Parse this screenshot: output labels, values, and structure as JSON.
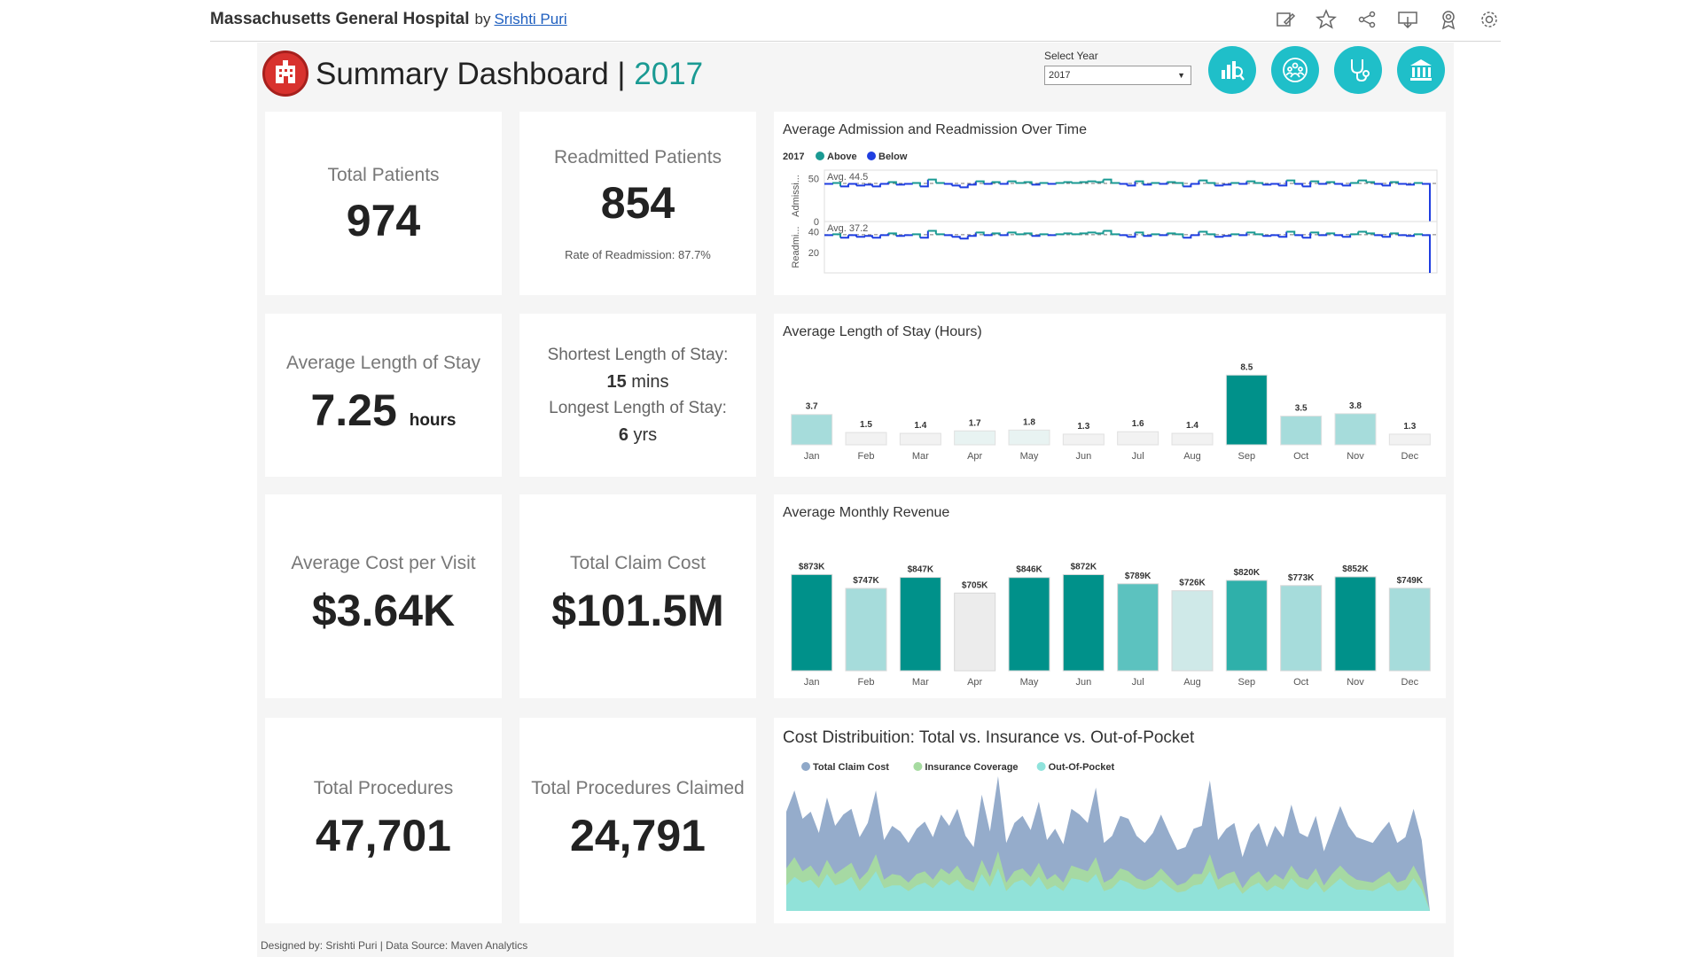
{
  "header": {
    "title": "Massachusetts General Hospital",
    "by": "by",
    "author": "Srishti Puri",
    "icons": [
      "edit-icon",
      "star-icon",
      "share-icon",
      "download-icon",
      "subscribe-icon",
      "settings-icon"
    ]
  },
  "dashboard": {
    "title": "Summary Dashboard | ",
    "year": "2017",
    "select_label": "Select Year",
    "select_value": "2017",
    "nav_icons": [
      "overview-icon",
      "patients-icon",
      "stethoscope-icon",
      "hospital-icon"
    ]
  },
  "kpis": {
    "total_patients": {
      "label": "Total Patients",
      "value": "974"
    },
    "readmitted": {
      "label": "Readmitted Patients",
      "value": "854",
      "sub": "Rate of Readmission: 87.7%"
    },
    "avg_stay": {
      "label": "Average Length of Stay",
      "value": "7.25",
      "unit": "hours"
    },
    "stay_range": {
      "shortest_label": "Shortest Length of Stay:",
      "shortest_value": "15",
      "shortest_unit": "mins",
      "longest_label": "Longest Length of Stay:",
      "longest_value": "6",
      "longest_unit": "yrs"
    },
    "avg_cost": {
      "label": "Average Cost per Visit",
      "value": "$3.64K"
    },
    "total_claim": {
      "label": "Total Claim Cost",
      "value": "$101.5M"
    },
    "total_procedures": {
      "label": "Total Procedures",
      "value": "47,701"
    },
    "procedures_claimed": {
      "label": "Total Procedures Claimed",
      "value": "24,791"
    }
  },
  "colors": {
    "teal_dark": "#00918a",
    "teal_mid": "#5cc2bf",
    "teal_light": "#a6dcdb",
    "grey_light": "#ececec",
    "above": "#1a9a93",
    "below": "#1f3ee0"
  },
  "chart_data": [
    {
      "type": "line",
      "title": "Average Admission and Readmission Over Time",
      "legend": {
        "year": "2017",
        "above": "Above",
        "below": "Below"
      },
      "panels": [
        {
          "ylabel": "Admissi...",
          "avg_label": "Avg. 44.5",
          "avg": 44.5,
          "ticks": [
            "50",
            "0"
          ],
          "ylim": [
            0,
            60
          ]
        },
        {
          "ylabel": "Readmi...",
          "avg_label": "Avg. 37.2",
          "avg": 37.2,
          "ticks": [
            "40",
            "20"
          ],
          "ylim": [
            0,
            50
          ]
        }
      ],
      "values": [
        44,
        45,
        41,
        44,
        42,
        43,
        41,
        44,
        46,
        43,
        44,
        45,
        41,
        49,
        45,
        44,
        42,
        40,
        43,
        47,
        44,
        46,
        44,
        47,
        45,
        46,
        43,
        45,
        44,
        45,
        46,
        45,
        46,
        47,
        46,
        49,
        45,
        44,
        42,
        47,
        43,
        45,
        44,
        46,
        45,
        41,
        44,
        48,
        45,
        42,
        43,
        45,
        44,
        47,
        45,
        43,
        44,
        42,
        48,
        44,
        41,
        47,
        44,
        46,
        44,
        42,
        45,
        48,
        46,
        44,
        42,
        46,
        44,
        43,
        45,
        44,
        0
      ],
      "x_range": [
        "Jan 2017",
        "Dec 2017"
      ]
    },
    {
      "type": "bar",
      "title": "Average Length of Stay (Hours)",
      "categories": [
        "Jan",
        "Feb",
        "Mar",
        "Apr",
        "May",
        "Jun",
        "Jul",
        "Aug",
        "Sep",
        "Oct",
        "Nov",
        "Dec"
      ],
      "values": [
        3.7,
        1.5,
        1.4,
        1.7,
        1.8,
        1.3,
        1.6,
        1.4,
        8.5,
        3.5,
        3.8,
        1.3
      ],
      "labels": [
        "3.7",
        "1.5",
        "1.4",
        "1.7",
        "1.8",
        "1.3",
        "1.6",
        "1.4",
        "8.5",
        "3.5",
        "3.8",
        "1.3"
      ],
      "ylim": [
        0,
        9.5
      ]
    },
    {
      "type": "bar",
      "title": "Average Monthly Revenue",
      "categories": [
        "Jan",
        "Feb",
        "Mar",
        "Apr",
        "May",
        "Jun",
        "Jul",
        "Aug",
        "Sep",
        "Oct",
        "Nov",
        "Dec"
      ],
      "values": [
        873,
        747,
        847,
        705,
        846,
        872,
        789,
        726,
        820,
        773,
        852,
        749
      ],
      "labels": [
        "$873K",
        "$747K",
        "$847K",
        "$705K",
        "$846K",
        "$872K",
        "$789K",
        "$726K",
        "$820K",
        "$773K",
        "$852K",
        "$749K"
      ],
      "ylim": [
        0,
        900
      ]
    },
    {
      "type": "area",
      "title": "Cost Distribuition: Total vs. Insurance vs. Out-of-Pocket",
      "series": [
        {
          "name": "Total Claim Cost",
          "color": "#8fa8c8",
          "values": [
            70,
            85,
            65,
            70,
            55,
            80,
            60,
            68,
            72,
            52,
            62,
            85,
            50,
            60,
            56,
            48,
            58,
            63,
            52,
            68,
            60,
            72,
            53,
            45,
            82,
            56,
            95,
            48,
            62,
            67,
            57,
            77,
            50,
            58,
            47,
            72,
            68,
            62,
            87,
            48,
            53,
            67,
            65,
            53,
            48,
            55,
            68,
            55,
            43,
            45,
            58,
            60,
            92,
            50,
            58,
            62,
            38,
            55,
            62,
            45,
            60,
            52,
            75,
            55,
            52,
            67,
            42,
            58,
            74,
            60,
            52,
            50,
            48,
            56,
            63,
            48,
            52,
            72,
            50,
            0
          ]
        },
        {
          "name": "Insurance Coverage",
          "color": "#a6dba0",
          "values": [
            30,
            38,
            28,
            32,
            24,
            36,
            26,
            30,
            34,
            22,
            28,
            40,
            22,
            26,
            25,
            20,
            26,
            28,
            22,
            30,
            26,
            32,
            23,
            20,
            36,
            24,
            42,
            20,
            28,
            30,
            24,
            34,
            22,
            26,
            20,
            32,
            30,
            28,
            38,
            20,
            23,
            30,
            28,
            23,
            21,
            24,
            30,
            24,
            18,
            20,
            26,
            26,
            40,
            22,
            26,
            28,
            16,
            24,
            28,
            20,
            26,
            22,
            32,
            24,
            22,
            30,
            18,
            26,
            32,
            26,
            22,
            21,
            20,
            24,
            28,
            20,
            22,
            32,
            21,
            0
          ]
        },
        {
          "name": "Out-Of-Pocket",
          "color": "#8fe3dc",
          "values": [
            18,
            24,
            20,
            22,
            16,
            26,
            18,
            20,
            24,
            14,
            20,
            28,
            16,
            18,
            18,
            14,
            18,
            20,
            16,
            22,
            18,
            22,
            16,
            14,
            26,
            17,
            30,
            14,
            20,
            22,
            17,
            24,
            15,
            18,
            14,
            23,
            22,
            20,
            26,
            14,
            16,
            22,
            20,
            16,
            15,
            17,
            22,
            17,
            13,
            14,
            18,
            19,
            28,
            15,
            18,
            20,
            12,
            17,
            20,
            14,
            18,
            15,
            23,
            17,
            15,
            21,
            13,
            18,
            23,
            18,
            15,
            15,
            14,
            17,
            20,
            14,
            15,
            23,
            15,
            0
          ]
        }
      ]
    }
  ],
  "footer": "Designed by: Srishti Puri | Data Source: Maven Analytics"
}
